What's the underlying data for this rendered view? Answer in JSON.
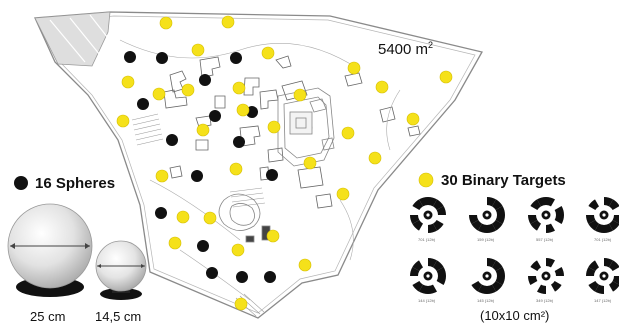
{
  "area": {
    "value": "5400 m",
    "unit_sup": "2"
  },
  "legend": {
    "spheres": {
      "label": "16 Spheres",
      "color": "#111111",
      "count": 16
    },
    "targets": {
      "label": "30 Binary Targets",
      "color": "#f5e11a",
      "count": 30
    }
  },
  "spheres": {
    "large": {
      "diameter_label": "25 cm"
    },
    "small": {
      "diameter_label": "14,5 cm"
    }
  },
  "targets": {
    "size_label": "(10x10 cm²)",
    "codes": [
      "701 (12b)",
      "159 (12b)",
      "557 (12b)",
      "701 (12b)",
      "144 (12b)",
      "145 (12b)",
      "349 (12b)",
      "147 (12b)"
    ]
  }
}
